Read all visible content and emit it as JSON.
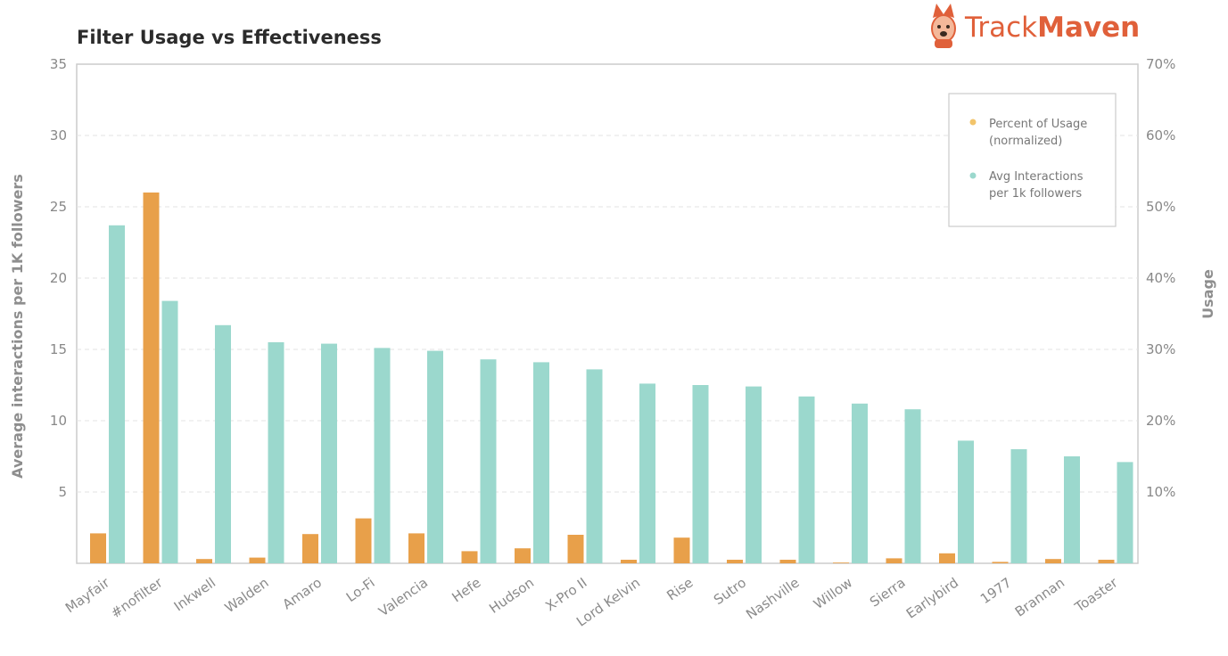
{
  "brand": {
    "prefix": "Track",
    "suffix": "Maven",
    "logo_icon": "corgi-dog-icon",
    "color": "#e0603a"
  },
  "chart_data": {
    "type": "bar",
    "title": "Filter Usage vs Effectiveness",
    "ylabel": "Average interactions per 1K followers",
    "y2label": "Usage",
    "ylim": [
      0,
      35
    ],
    "y2lim": [
      0,
      70
    ],
    "yticks": [
      "5",
      "10",
      "15",
      "20",
      "25",
      "30",
      "35"
    ],
    "y2ticks": [
      "10%",
      "20%",
      "30%",
      "40%",
      "50%",
      "60%",
      "70%"
    ],
    "grid": true,
    "legend_position": "top-right",
    "categories": [
      "Mayfair",
      "#nofilter",
      "Inkwell",
      "Walden",
      "Amaro",
      "Lo-Fi",
      "Valencia",
      "Hefe",
      "Hudson",
      "X-Pro II",
      "Lord Kelvin",
      "Rise",
      "Sutro",
      "Nashville",
      "Willow",
      "Sierra",
      "Earlybird",
      "1977",
      "Brannan",
      "Toaster"
    ],
    "series": [
      {
        "name": "Percent of Usage (normalized)",
        "legend_lines": [
          "Percent of Usage",
          "(normalized)"
        ],
        "axis": "right",
        "color": "#e8a04a",
        "values": [
          4.2,
          52.0,
          0.6,
          0.8,
          4.1,
          6.3,
          4.2,
          1.7,
          2.1,
          4.0,
          0.5,
          3.6,
          0.5,
          0.5,
          0.1,
          0.7,
          1.4,
          0.2,
          0.6,
          0.5
        ]
      },
      {
        "name": "Avg Interactions per 1k followers",
        "legend_lines": [
          "Avg Interactions",
          "per 1k followers"
        ],
        "axis": "left",
        "color": "#9bd8cd",
        "values": [
          23.7,
          18.4,
          16.7,
          15.5,
          15.4,
          15.1,
          14.9,
          14.3,
          14.1,
          13.6,
          12.6,
          12.5,
          12.4,
          11.7,
          11.2,
          10.8,
          8.6,
          8.0,
          7.5,
          7.1
        ]
      }
    ]
  }
}
